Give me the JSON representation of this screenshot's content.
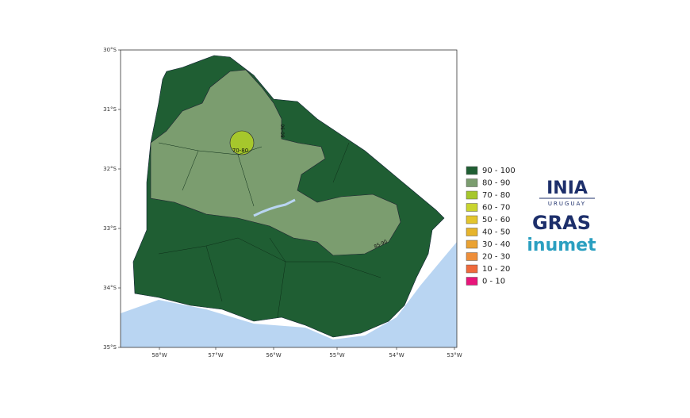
{
  "map": {
    "lat_labels": [
      "30°S",
      "31°S",
      "32°S",
      "33°S",
      "34°S",
      "35°S"
    ],
    "lon_labels": [
      "58°W",
      "57°W",
      "56°W",
      "55°W",
      "54°W",
      "53°W"
    ],
    "contour_labels": [
      "70-80",
      "80-90",
      "85-90"
    ],
    "legend": [
      {
        "label": "90 - 100",
        "color": "#1f5e33"
      },
      {
        "label": "80 - 90",
        "color": "#7b9d6f"
      },
      {
        "label": "70 - 80",
        "color": "#a6c72c"
      },
      {
        "label": "60 - 70",
        "color": "#c9d52e"
      },
      {
        "label": "50 - 60",
        "color": "#e3c52d"
      },
      {
        "label": "40 - 50",
        "color": "#e6b42c"
      },
      {
        "label": "30 - 40",
        "color": "#eaa232"
      },
      {
        "label": "20 - 30",
        "color": "#ee8e3a"
      },
      {
        "label": "10 - 20",
        "color": "#ef6a3c"
      },
      {
        "label": "0 - 10",
        "color": "#e8157a"
      }
    ]
  },
  "logos": {
    "inia": "INIA",
    "inia_sub": "URUGUAY",
    "gras": "GRAS",
    "inumet": "inumet"
  }
}
